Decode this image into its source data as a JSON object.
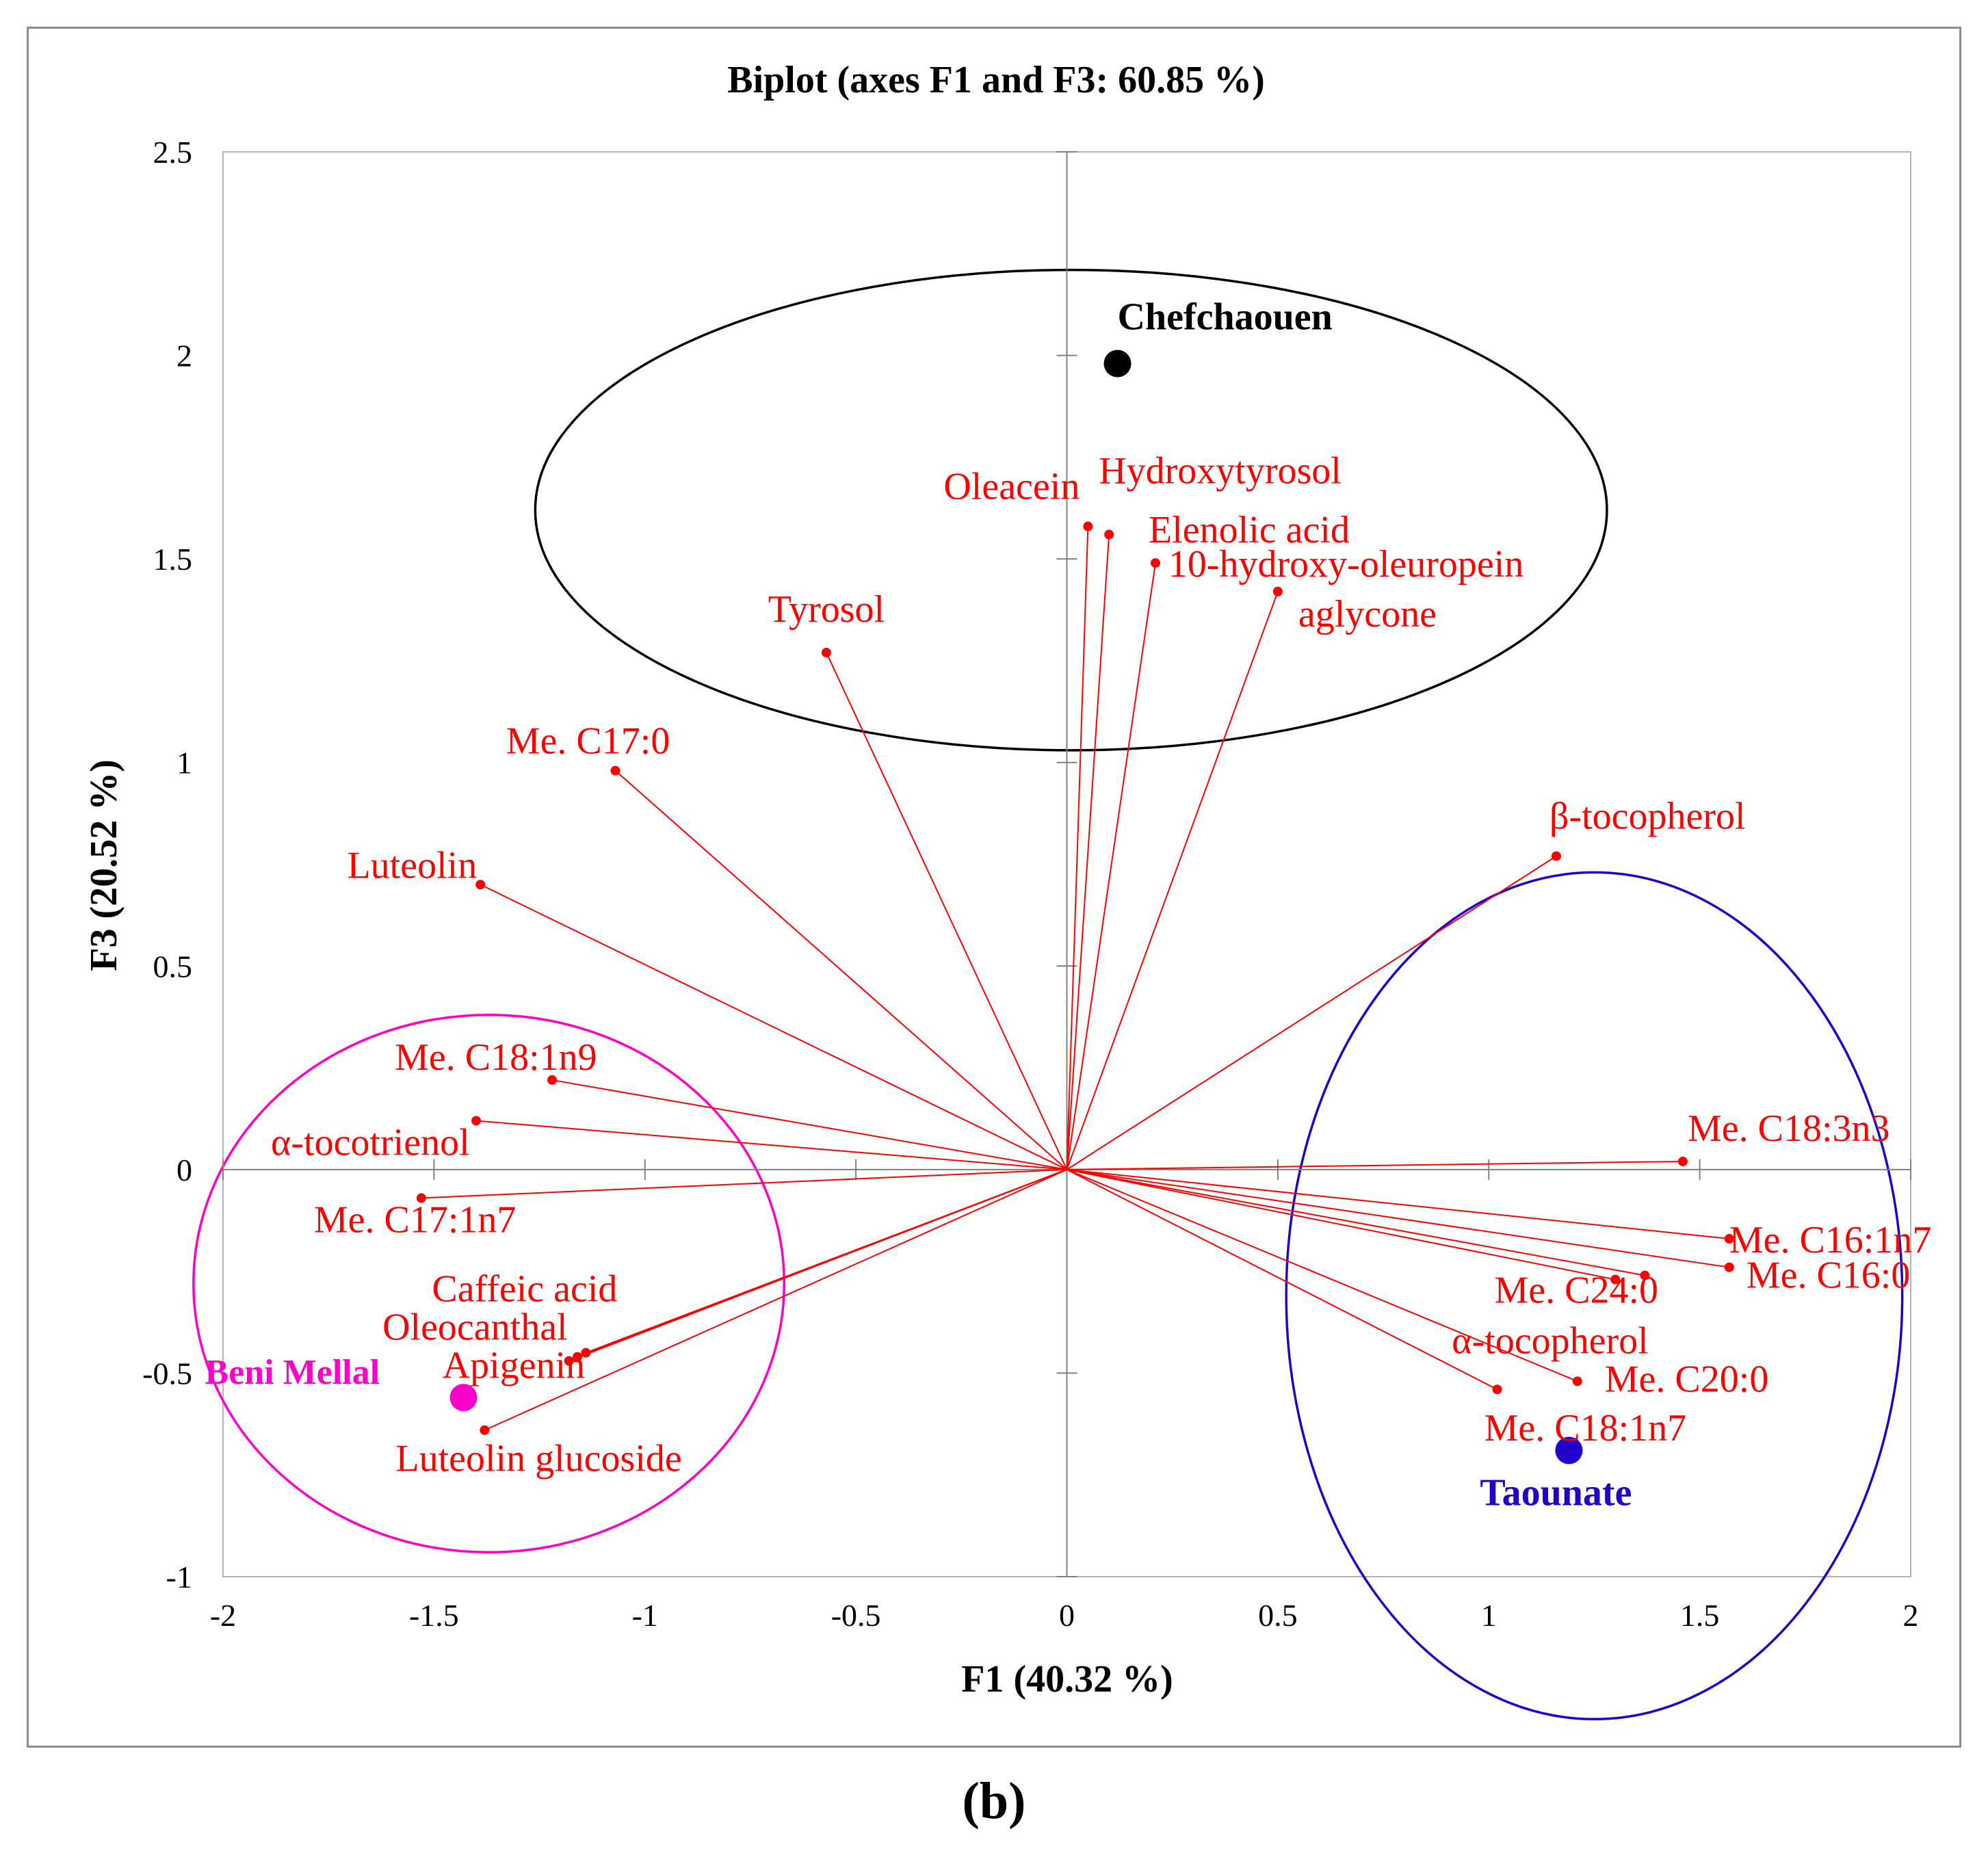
{
  "panel_label": "(b)",
  "chart_data": {
    "type": "scatter",
    "subtype": "pca-biplot",
    "title": "Biplot (axes F1 and F3: 60.85 %)",
    "xlabel": "F1 (40.32 %)",
    "ylabel": "F3 (20.52 %)",
    "xlim": [
      -2,
      2
    ],
    "ylim": [
      -1,
      2.5
    ],
    "xticks": [
      {
        "value": -2,
        "label": "-2"
      },
      {
        "value": -1.5,
        "label": "-1.5"
      },
      {
        "value": -1,
        "label": "-1"
      },
      {
        "value": -0.5,
        "label": "-0.5"
      },
      {
        "value": 0,
        "label": "0"
      },
      {
        "value": 0.5,
        "label": "0.5"
      },
      {
        "value": 1,
        "label": "1"
      },
      {
        "value": 1.5,
        "label": "1.5"
      },
      {
        "value": 2,
        "label": "2"
      }
    ],
    "yticks": [
      {
        "value": -1,
        "label": "-1"
      },
      {
        "value": -0.5,
        "label": "-0.5"
      },
      {
        "value": 0,
        "label": "0"
      },
      {
        "value": 0.5,
        "label": "0.5"
      },
      {
        "value": 1,
        "label": "1"
      },
      {
        "value": 1.5,
        "label": "1.5"
      },
      {
        "value": 2,
        "label": "2"
      },
      {
        "value": 2.5,
        "label": "2.5"
      }
    ],
    "grid": false,
    "colors": {
      "variables": "#ff0000",
      "axis": "#808080"
    },
    "variables": [
      {
        "label": "Hydroxytyrosol",
        "x": 0.1,
        "y": 1.56
      },
      {
        "label": "Oleacein",
        "x": 0.05,
        "y": 1.58
      },
      {
        "label": "Elenolic acid",
        "x": 0.21,
        "y": 1.49
      },
      {
        "label": "10-hydroxy-oleuropein aglycone",
        "x": 0.5,
        "y": 1.42
      },
      {
        "label": "Tyrosol",
        "x": -0.57,
        "y": 1.27
      },
      {
        "label": "Me. C17:0",
        "x": -1.07,
        "y": 0.98
      },
      {
        "label": "Luteolin",
        "x": -1.39,
        "y": 0.7
      },
      {
        "label": "β-tocopherol",
        "x": 1.16,
        "y": 0.77
      },
      {
        "label": "Me. C18:1n9",
        "x": -1.22,
        "y": 0.22
      },
      {
        "label": "α-tocotrienol",
        "x": -1.4,
        "y": 0.12
      },
      {
        "label": "Me. C17:1n7",
        "x": -1.53,
        "y": -0.07
      },
      {
        "label": "Caffeic acid",
        "x": -1.14,
        "y": -0.45
      },
      {
        "label": "Oleocanthal",
        "x": -1.16,
        "y": -0.46
      },
      {
        "label": "Apigenin",
        "x": -1.18,
        "y": -0.47
      },
      {
        "label": "Luteolin glucoside",
        "x": -1.38,
        "y": -0.64
      },
      {
        "label": "Me. C18:3n3",
        "x": 1.46,
        "y": 0.02
      },
      {
        "label": "Me. C16:1n7",
        "x": 1.57,
        "y": -0.17
      },
      {
        "label": "Me. C16:0",
        "x": 1.57,
        "y": -0.24
      },
      {
        "label": "Me. C24:0",
        "x": 1.37,
        "y": -0.26
      },
      {
        "label": "α-tocopherol",
        "x": 1.3,
        "y": -0.27
      },
      {
        "label": "Me. C20:0",
        "x": 1.21,
        "y": -0.52
      },
      {
        "label": "Me. C18:1n7",
        "x": 1.02,
        "y": -0.54
      }
    ],
    "observations": [
      {
        "label": "Chefchaouen",
        "x": 0.12,
        "y": 1.98,
        "color": "#000000"
      },
      {
        "label": "Beni Mellal",
        "x": -1.43,
        "y": -0.56,
        "color": "#ff00cc"
      },
      {
        "label": "Taounate",
        "x": 1.19,
        "y": -0.69,
        "color": "#2200cc"
      }
    ],
    "groups": [
      {
        "label": "Chefchaouen",
        "cx": 0.01,
        "cy": 1.62,
        "rx": 1.27,
        "ry": 0.59,
        "color": "#000000"
      },
      {
        "label": "Beni Mellal",
        "cx": -1.37,
        "cy": -0.28,
        "rx": 0.7,
        "ry": 0.66,
        "color": "#ff00cc"
      },
      {
        "label": "Taounate",
        "cx": 1.25,
        "cy": -0.31,
        "rx": 0.73,
        "ry": 1.04,
        "color": "#2200cc"
      }
    ]
  }
}
